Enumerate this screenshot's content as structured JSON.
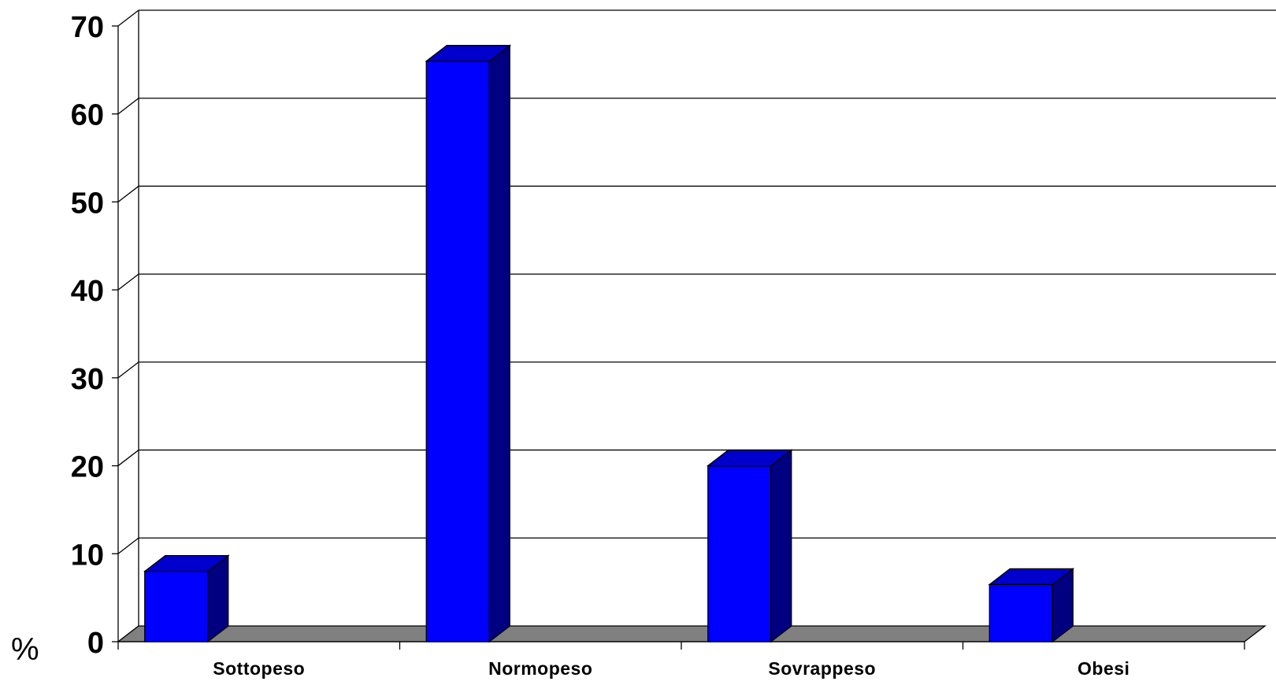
{
  "chart_data": {
    "type": "bar",
    "categories": [
      "Sottopeso",
      "Normopeso",
      "Sovrappeso",
      "Obesi"
    ],
    "values": [
      8,
      66,
      20,
      6.5
    ],
    "title": "",
    "xlabel": "",
    "ylabel": "%",
    "ylim": [
      0,
      70
    ],
    "yticks": [
      0,
      10,
      20,
      30,
      40,
      50,
      60,
      70
    ],
    "grid": true,
    "legend": "none",
    "style": "3d-column",
    "colors": {
      "bar_front": "#0000ff",
      "bar_side": "#000080",
      "bar_top": "#0000cc",
      "floor": "#808080",
      "gridline": "#000000"
    }
  }
}
